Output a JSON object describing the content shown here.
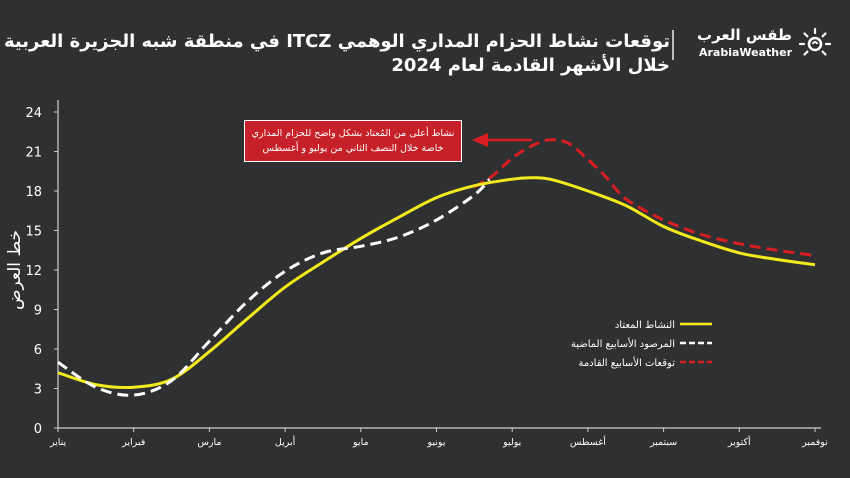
{
  "brand": {
    "name_ar": "طقس العرب",
    "name_en": "ArabiaWeather"
  },
  "header": {
    "title_line1": "توقعات نشاط الحزام المداري الوهمي ITCZ في منطقة شبه الجزيرة العربية",
    "title_line2": "خلال الأشهر القادمة لعام 2024"
  },
  "annotation": {
    "line1": "نشاط أعلى من المُعتاد بشكل واضح للحزام المداري",
    "line2": "خاصة خلال النصف الثاني من يوليو و أغسطس"
  },
  "colors": {
    "background": "#2f3031",
    "normal": "#f2ea1c",
    "observed": "#ffffff",
    "forecast": "#d81e22"
  },
  "chart_data": {
    "type": "line",
    "title": "توقعات نشاط الحزام المداري الوهمي ITCZ في منطقة شبه الجزيرة العربية خلال الأشهر القادمة لعام 2024",
    "xlabel": "",
    "ylabel": "خط العرض",
    "categories": [
      "يناير",
      "فبراير",
      "مارس",
      "أبريل",
      "مايو",
      "يونيو",
      "يوليو",
      "أغسطس",
      "سبتمبر",
      "أكتوبر",
      "نوفمبر"
    ],
    "ylim": [
      0,
      24
    ],
    "yticks": [
      0,
      3,
      6,
      9,
      12,
      15,
      18,
      21,
      24
    ],
    "legend_position": "right",
    "series": [
      {
        "name": "النشاط المعتاد",
        "style": "solid",
        "color": "#f2ea1c",
        "x": [
          0,
          0.5,
          1,
          1.5,
          2,
          2.5,
          3,
          3.5,
          4,
          4.5,
          5,
          5.5,
          6,
          6.25,
          6.5,
          7,
          7.5,
          8,
          8.5,
          9,
          9.5,
          10
        ],
        "y": [
          4.2,
          3.3,
          3.1,
          3.7,
          5.8,
          8.3,
          10.7,
          12.6,
          14.4,
          16.0,
          17.5,
          18.4,
          18.9,
          19.0,
          18.9,
          18.0,
          16.9,
          15.3,
          14.2,
          13.3,
          12.8,
          12.4
        ]
      },
      {
        "name": "المرصود الأسابيع الماضية",
        "style": "dashed",
        "color": "#ffffff",
        "x": [
          0,
          0.5,
          1,
          1.5,
          2,
          2.5,
          3,
          3.5,
          4,
          4.5,
          5,
          5.5,
          5.7
        ],
        "y": [
          5.0,
          3.1,
          2.5,
          3.6,
          6.6,
          9.6,
          11.9,
          13.3,
          13.8,
          14.5,
          15.8,
          17.7,
          18.9
        ]
      },
      {
        "name": "توقعات الأسابيع القادمة",
        "style": "dashed",
        "color": "#d81e22",
        "x": [
          5.5,
          5.75,
          6,
          6.25,
          6.5,
          6.75,
          7,
          7.25,
          7.5,
          8,
          8.5,
          9,
          9.5,
          10
        ],
        "y": [
          18.3,
          19.2,
          20.5,
          21.4,
          21.9,
          21.6,
          20.4,
          19.0,
          17.4,
          15.8,
          14.7,
          14.0,
          13.5,
          13.1
        ]
      }
    ]
  }
}
